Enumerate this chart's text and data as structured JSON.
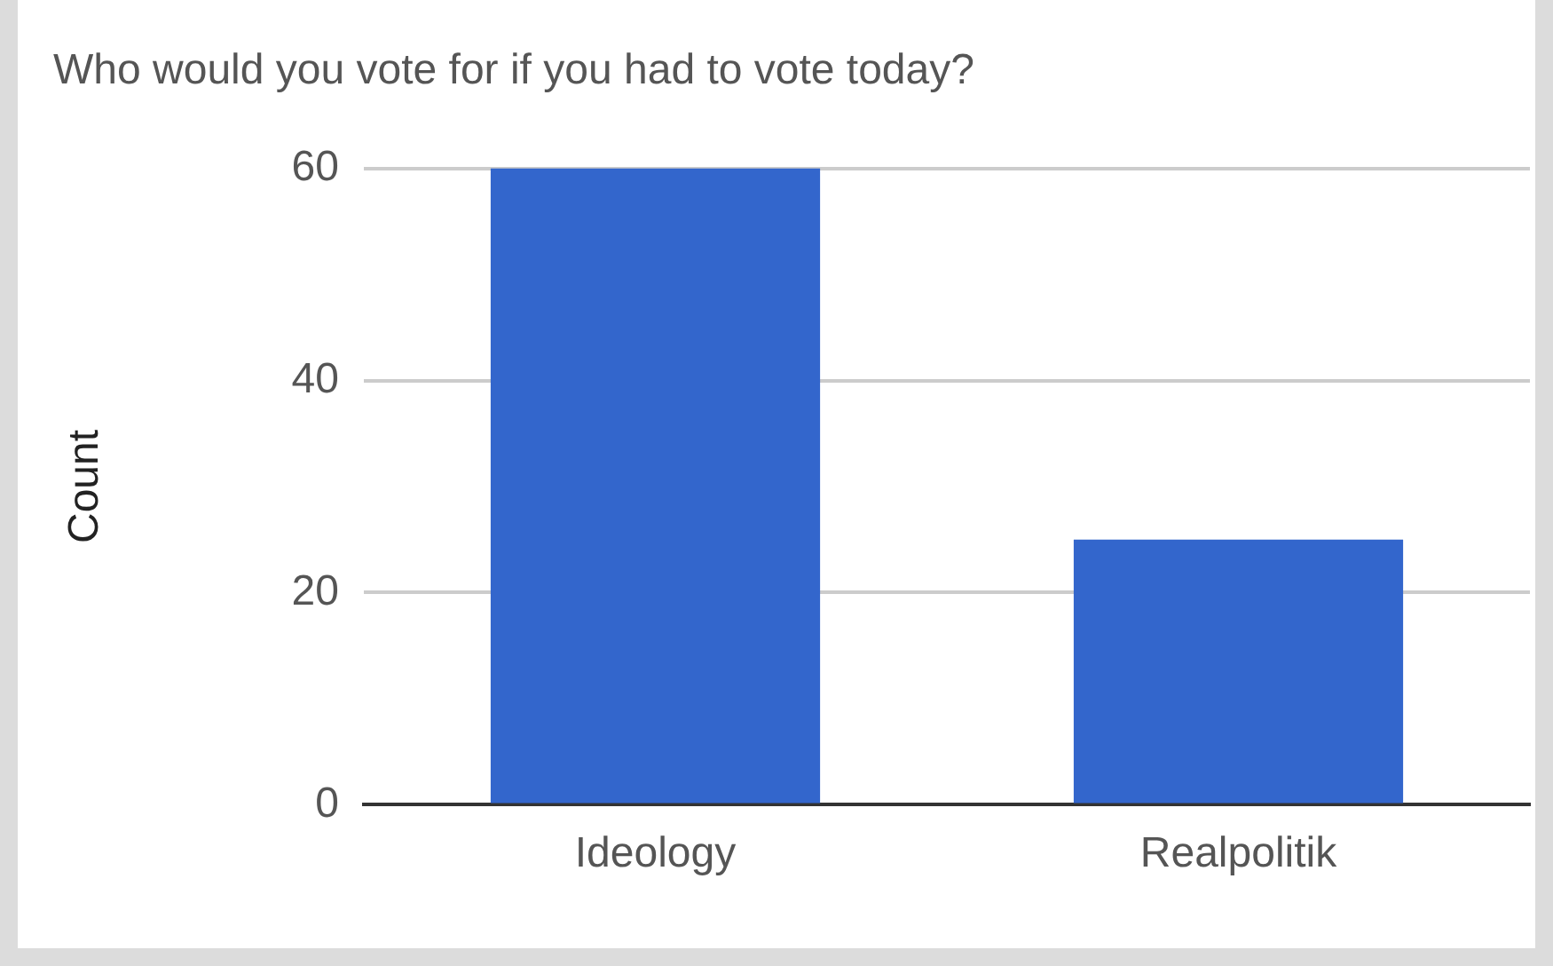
{
  "chart_data": {
    "type": "bar",
    "title": "Who would you vote for if you had to vote today?",
    "ylabel": "Count",
    "categories": [
      "Ideology",
      "Realpolitik"
    ],
    "values": [
      60,
      25
    ],
    "color": "#3366cc",
    "ylim": [
      0,
      60
    ],
    "yticks": [
      0,
      20,
      40,
      60
    ],
    "grid": "y",
    "legend": false
  }
}
